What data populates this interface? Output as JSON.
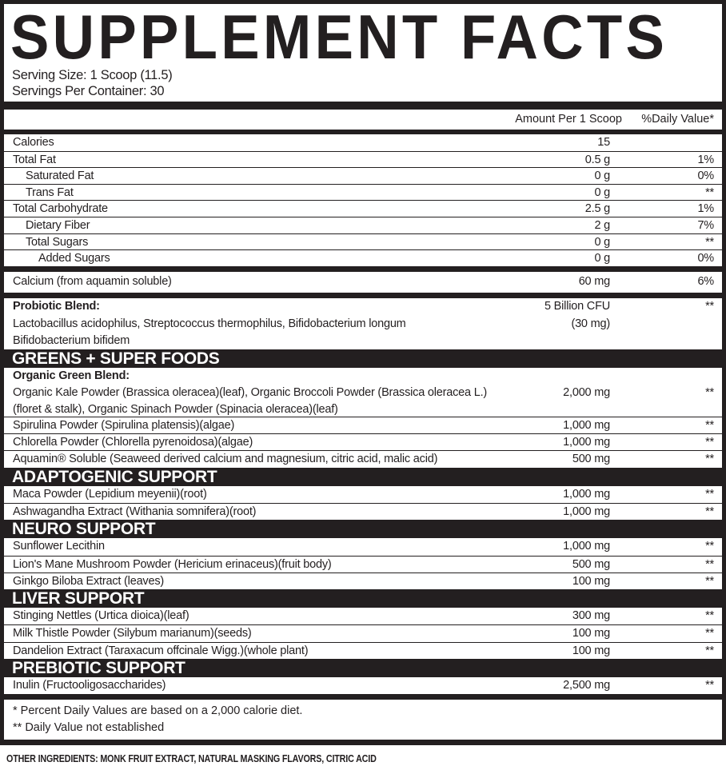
{
  "title": "SUPPLEMENT FACTS",
  "serving_size": "Serving Size: 1 Scoop (11.5)",
  "servings_per_container": "Servings Per Container: 30",
  "header": {
    "amount": "Amount Per 1 Scoop",
    "dv": "%Daily Value*"
  },
  "nutrition": [
    {
      "name": "Calories",
      "amount": "15",
      "dv": "",
      "indent": 0
    },
    {
      "name": "Total Fat",
      "amount": "0.5 g",
      "dv": "1%",
      "indent": 0
    },
    {
      "name": "Saturated Fat",
      "amount": "0 g",
      "dv": "0%",
      "indent": 1
    },
    {
      "name": "Trans Fat",
      "amount": "0 g",
      "dv": "**",
      "indent": 1
    },
    {
      "name": "Total Carbohydrate",
      "amount": "2.5 g",
      "dv": "1%",
      "indent": 0
    },
    {
      "name": "Dietary Fiber",
      "amount": "2 g",
      "dv": "7%",
      "indent": 1
    },
    {
      "name": "Total Sugars",
      "amount": "0 g",
      "dv": "**",
      "indent": 1
    },
    {
      "name": "Added Sugars",
      "amount": "0 g",
      "dv": "0%",
      "indent": 2
    }
  ],
  "calcium": {
    "name": "Calcium (from aquamin soluble)",
    "amount": "60 mg",
    "dv": "6%"
  },
  "probiotic": {
    "label": "Probiotic Blend:",
    "lines": [
      "Lactobacillus acidophilus, Streptococcus thermophilus, Bifidobacterium longum",
      "Bifidobacterium bifidem"
    ],
    "amount": "5 Billion CFU",
    "amount_note": "(30 mg)",
    "dv": "**"
  },
  "sections": [
    {
      "title": "GREENS + SUPER FOODS",
      "items": [
        {
          "label": "Organic Green Blend:",
          "lines": [
            "Organic Kale Powder (Brassica oleracea)(leaf), Organic Broccoli Powder (Brassica oleracea L.)",
            "(floret & stalk), Organic Spinach Powder (Spinacia oleracea)(leaf)"
          ],
          "amount": "2,000 mg",
          "dv": "**"
        },
        {
          "name": "Spirulina Powder (Spirulina platensis)(algae)",
          "amount": "1,000 mg",
          "dv": "**"
        },
        {
          "name": "Chlorella Powder (Chlorella pyrenoidosa)(algae)",
          "amount": "1,000 mg",
          "dv": "**"
        },
        {
          "name": "Aquamin® Soluble (Seaweed derived calcium and magnesium, citric acid, malic acid)",
          "amount": "500 mg",
          "dv": "**"
        }
      ]
    },
    {
      "title": "ADAPTOGENIC SUPPORT",
      "items": [
        {
          "name": "Maca Powder (Lepidium meyenii)(root)",
          "amount": "1,000 mg",
          "dv": "**"
        },
        {
          "name": "Ashwagandha Extract (Withania somnifera)(root)",
          "amount": "1,000 mg",
          "dv": "**"
        }
      ]
    },
    {
      "title": "NEURO SUPPORT",
      "items": [
        {
          "name": "Sunflower Lecithin",
          "amount": "1,000 mg",
          "dv": "**"
        },
        {
          "name": "Lion's Mane Mushroom Powder (Hericium erinaceus)(fruit body)",
          "amount": "500 mg",
          "dv": "**"
        },
        {
          "name": "Ginkgo Biloba Extract (leaves)",
          "amount": "100 mg",
          "dv": "**"
        }
      ]
    },
    {
      "title": "LIVER SUPPORT",
      "items": [
        {
          "name": "Stinging Nettles (Urtica dioica)(leaf)",
          "amount": "300 mg",
          "dv": "**"
        },
        {
          "name": "Milk Thistle Powder (Silybum marianum)(seeds)",
          "amount": "100 mg",
          "dv": "**"
        },
        {
          "name": "Dandelion Extract (Taraxacum offcinale Wigg.)(whole plant)",
          "amount": "100 mg",
          "dv": "**"
        }
      ]
    },
    {
      "title": "PREBIOTIC SUPPORT",
      "items": [
        {
          "name": "Inulin (Fructooligosaccharides)",
          "amount": "2,500 mg",
          "dv": "**"
        }
      ]
    }
  ],
  "footnotes": [
    "* Percent Daily Values are based on a 2,000 calorie diet.",
    "** Daily Value not established"
  ],
  "other_ingredients": "OTHER INGREDIENTS: MONK FRUIT EXTRACT, NATURAL MASKING FLAVORS, CITRIC ACID"
}
